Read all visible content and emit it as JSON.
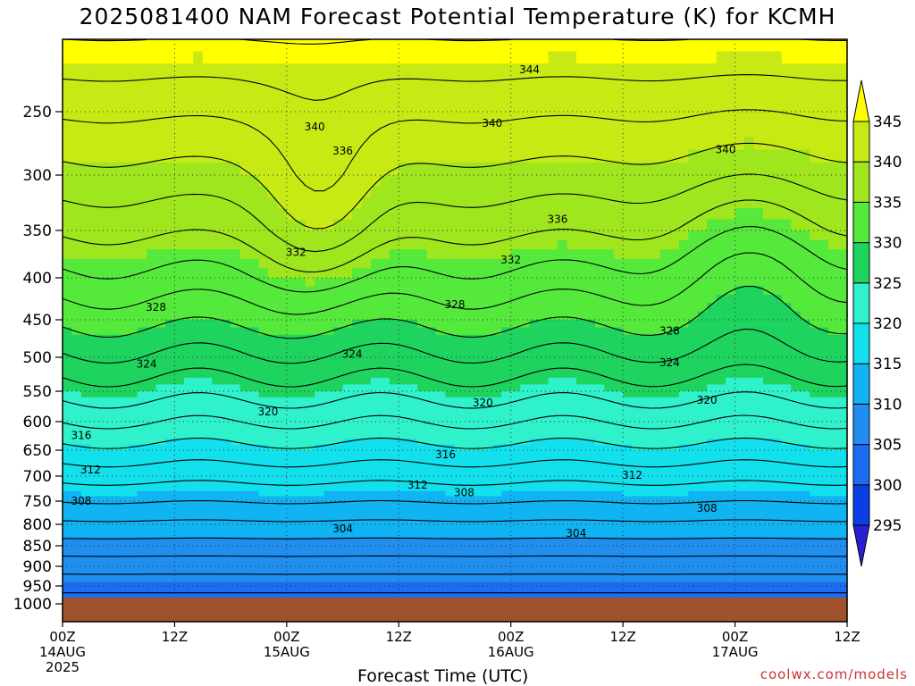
{
  "title": "2025081400 NAM Forecast Potential Temperature (K) for KCMH",
  "credit": "coolwx.com/models",
  "chart_data": {
    "type": "heatmap",
    "title": "2025081400 NAM Forecast Potential Temperature (K) for KCMH",
    "xlabel": "Forecast Time (UTC)",
    "ylabel": "",
    "x_ticks": [
      {
        "hour": 0,
        "label": [
          "00Z",
          "14AUG",
          "2025"
        ]
      },
      {
        "hour": 12,
        "label": [
          "12Z"
        ]
      },
      {
        "hour": 24,
        "label": [
          "00Z",
          "15AUG"
        ]
      },
      {
        "hour": 36,
        "label": [
          "12Z"
        ]
      },
      {
        "hour": 48,
        "label": [
          "00Z",
          "16AUG"
        ]
      },
      {
        "hour": 60,
        "label": [
          "12Z"
        ]
      },
      {
        "hour": 72,
        "label": [
          "00Z",
          "17AUG"
        ]
      },
      {
        "hour": 84,
        "label": [
          "12Z"
        ]
      }
    ],
    "xlim_hours": [
      0,
      84
    ],
    "y_ticks": [
      250,
      300,
      350,
      400,
      450,
      500,
      550,
      600,
      650,
      700,
      750,
      800,
      850,
      900,
      950,
      1000
    ],
    "ylim_hPa": [
      190,
      1000
    ],
    "grid": true,
    "colorbar": {
      "levels": [
        295,
        300,
        305,
        310,
        315,
        320,
        325,
        330,
        335,
        340,
        345
      ],
      "colors": [
        "#2a1fd0",
        "#0a3ee6",
        "#1b6cf0",
        "#1f8eef",
        "#10b4f3",
        "#12e0ec",
        "#2ff2cc",
        "#1fd35f",
        "#55e93c",
        "#9fe61e",
        "#c8ea14",
        "#ffff00"
      ]
    },
    "ground_color": "#a0522d",
    "contours": {
      "interval": 2,
      "labels": [
        {
          "value": 344,
          "hour": 50,
          "p": 215
        },
        {
          "value": 340,
          "hour": 27,
          "p": 262
        },
        {
          "value": 340,
          "hour": 46,
          "p": 259
        },
        {
          "value": 340,
          "hour": 71,
          "p": 280
        },
        {
          "value": 336,
          "hour": 30,
          "p": 281
        },
        {
          "value": 336,
          "hour": 53,
          "p": 340
        },
        {
          "value": 332,
          "hour": 25,
          "p": 373
        },
        {
          "value": 332,
          "hour": 48,
          "p": 381
        },
        {
          "value": 328,
          "hour": 10,
          "p": 435
        },
        {
          "value": 328,
          "hour": 42,
          "p": 432
        },
        {
          "value": 328,
          "hour": 65,
          "p": 465
        },
        {
          "value": 324,
          "hour": 9,
          "p": 510
        },
        {
          "value": 324,
          "hour": 31,
          "p": 496
        },
        {
          "value": 324,
          "hour": 65,
          "p": 508
        },
        {
          "value": 320,
          "hour": 22,
          "p": 584
        },
        {
          "value": 320,
          "hour": 45,
          "p": 569
        },
        {
          "value": 320,
          "hour": 69,
          "p": 565
        },
        {
          "value": 316,
          "hour": 2,
          "p": 624
        },
        {
          "value": 316,
          "hour": 41,
          "p": 659
        },
        {
          "value": 312,
          "hour": 3,
          "p": 688
        },
        {
          "value": 312,
          "hour": 38,
          "p": 718
        },
        {
          "value": 312,
          "hour": 61,
          "p": 698
        },
        {
          "value": 308,
          "hour": 2,
          "p": 750
        },
        {
          "value": 308,
          "hour": 43,
          "p": 733
        },
        {
          "value": 308,
          "hour": 69,
          "p": 765
        },
        {
          "value": 304,
          "hour": 30,
          "p": 810
        },
        {
          "value": 304,
          "hour": 55,
          "p": 821
        }
      ]
    }
  }
}
